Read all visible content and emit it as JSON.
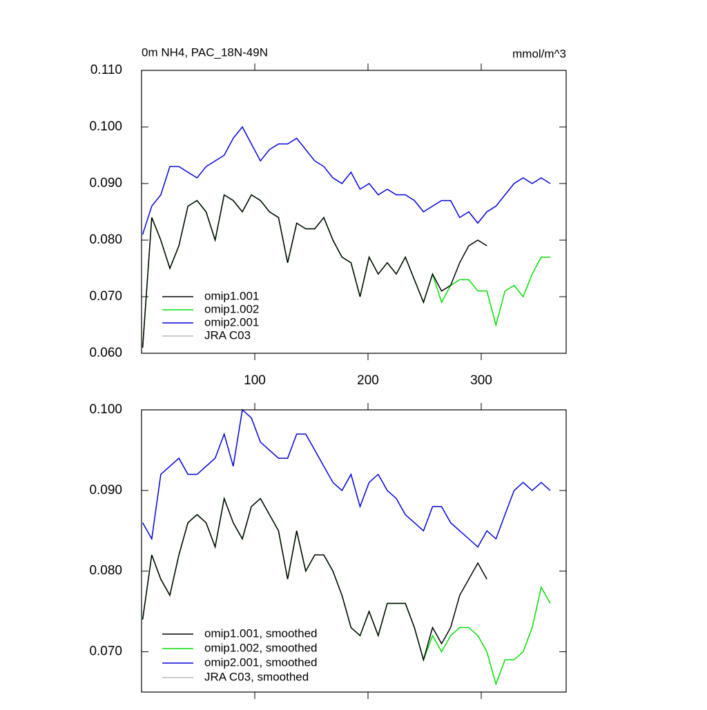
{
  "chart_data": [
    {
      "type": "line",
      "title": "0m NH4, PAC_18N-49N",
      "units": "mmol/m^3",
      "x": [
        1,
        9,
        17,
        25,
        33,
        41,
        49,
        57,
        65,
        73,
        81,
        89,
        97,
        105,
        113,
        121,
        129,
        137,
        145,
        153,
        161,
        169,
        177,
        185,
        193,
        201,
        209,
        217,
        225,
        233,
        241,
        249,
        257,
        265,
        273,
        281,
        289,
        297,
        305,
        313,
        321,
        329,
        337,
        345,
        353,
        361
      ],
      "xlim": [
        0,
        375
      ],
      "xticks": [
        100,
        200,
        300
      ],
      "ylim": [
        0.06,
        0.11
      ],
      "yticks": [
        {
          "value": 0.06,
          "label": "0.060"
        },
        {
          "value": 0.07,
          "label": "0.070"
        },
        {
          "value": 0.08,
          "label": "0.080"
        },
        {
          "value": 0.09,
          "label": "0.090"
        },
        {
          "value": 0.1,
          "label": "0.100"
        },
        {
          "value": 0.11,
          "label": "0.110"
        }
      ],
      "legend": "lower left",
      "series": [
        {
          "name": "omip1.001",
          "color": "#000000",
          "values": [
            0.061,
            0.084,
            0.08,
            0.075,
            0.079,
            0.086,
            0.087,
            0.085,
            0.08,
            0.088,
            0.087,
            0.085,
            0.088,
            0.087,
            0.085,
            0.084,
            0.076,
            0.083,
            0.082,
            0.082,
            0.084,
            0.08,
            0.077,
            0.076,
            0.07,
            0.077,
            0.074,
            0.076,
            0.074,
            0.077,
            0.073,
            0.069,
            0.074,
            0.071,
            0.072,
            0.076,
            0.079,
            0.08,
            0.079,
            null,
            null,
            null,
            null,
            null,
            null,
            null
          ]
        },
        {
          "name": "omip1.002",
          "color": "#00e000",
          "values": [
            0.061,
            0.084,
            0.08,
            0.075,
            0.079,
            0.086,
            0.087,
            0.085,
            0.08,
            0.088,
            0.087,
            0.085,
            0.088,
            0.087,
            0.085,
            0.084,
            0.076,
            0.083,
            0.082,
            0.082,
            0.084,
            0.08,
            0.077,
            0.076,
            0.07,
            0.077,
            0.074,
            0.076,
            0.074,
            0.077,
            0.073,
            0.069,
            0.074,
            0.069,
            0.072,
            0.073,
            0.073,
            0.071,
            0.071,
            0.065,
            0.071,
            0.072,
            0.07,
            0.074,
            0.077,
            0.077
          ]
        },
        {
          "name": "omip2.001",
          "color": "#0000dd",
          "values": [
            0.081,
            0.086,
            0.088,
            0.093,
            0.093,
            0.092,
            0.091,
            0.093,
            0.094,
            0.095,
            0.098,
            0.1,
            0.097,
            0.094,
            0.096,
            0.097,
            0.097,
            0.098,
            0.096,
            0.094,
            0.093,
            0.091,
            0.09,
            0.092,
            0.089,
            0.09,
            0.088,
            0.089,
            0.088,
            0.088,
            0.087,
            0.085,
            0.086,
            0.087,
            0.087,
            0.084,
            0.085,
            0.083,
            0.085,
            0.086,
            0.088,
            0.09,
            0.091,
            0.09,
            0.091,
            0.09
          ]
        },
        {
          "name": "JRA C03",
          "color": "#bbbbbb",
          "values": [
            null,
            null,
            null,
            null,
            null,
            null,
            null,
            null,
            null,
            null,
            null,
            null,
            null,
            null,
            null,
            null,
            null,
            null,
            null,
            null,
            null,
            null,
            null,
            null,
            null,
            null,
            null,
            null,
            null,
            null,
            null,
            null,
            null,
            null,
            null,
            null,
            null,
            null,
            null,
            null,
            null,
            null,
            null,
            null,
            null,
            null
          ]
        }
      ]
    },
    {
      "type": "line",
      "x": [
        1,
        9,
        17,
        25,
        33,
        41,
        49,
        57,
        65,
        73,
        81,
        89,
        97,
        105,
        113,
        121,
        129,
        137,
        145,
        153,
        161,
        169,
        177,
        185,
        193,
        201,
        209,
        217,
        225,
        233,
        241,
        249,
        257,
        265,
        273,
        281,
        289,
        297,
        305,
        313,
        321,
        329,
        337,
        345,
        353,
        361
      ],
      "xlim": [
        0,
        375
      ],
      "xticks": [
        100,
        200,
        300
      ],
      "ylim": [
        0.065,
        0.1
      ],
      "yticks": [
        {
          "value": 0.07,
          "label": "0.070"
        },
        {
          "value": 0.08,
          "label": "0.080"
        },
        {
          "value": 0.09,
          "label": "0.090"
        },
        {
          "value": 0.1,
          "label": "0.100"
        }
      ],
      "legend": "lower left",
      "series": [
        {
          "name": "omip1.001, smoothed",
          "color": "#000000",
          "values": [
            0.074,
            0.082,
            0.079,
            0.077,
            0.082,
            0.086,
            0.087,
            0.086,
            0.083,
            0.089,
            0.086,
            0.084,
            0.088,
            0.089,
            0.087,
            0.085,
            0.079,
            0.085,
            0.08,
            0.082,
            0.082,
            0.08,
            0.077,
            0.073,
            0.072,
            0.075,
            0.072,
            0.076,
            0.076,
            0.076,
            0.073,
            0.069,
            0.073,
            0.071,
            0.073,
            0.077,
            0.079,
            0.081,
            0.079,
            null,
            null,
            null,
            null,
            null,
            null,
            null
          ]
        },
        {
          "name": "omip1.002, smoothed",
          "color": "#00e000",
          "values": [
            0.074,
            0.082,
            0.079,
            0.077,
            0.082,
            0.086,
            0.087,
            0.086,
            0.083,
            0.089,
            0.086,
            0.084,
            0.088,
            0.089,
            0.087,
            0.085,
            0.079,
            0.085,
            0.08,
            0.082,
            0.082,
            0.08,
            0.077,
            0.073,
            0.072,
            0.075,
            0.072,
            0.076,
            0.076,
            0.076,
            0.073,
            0.069,
            0.072,
            0.07,
            0.072,
            0.073,
            0.073,
            0.072,
            0.07,
            0.066,
            0.069,
            0.069,
            0.07,
            0.073,
            0.078,
            0.076
          ]
        },
        {
          "name": "omip2.001, smoothed",
          "color": "#0000dd",
          "values": [
            0.086,
            0.084,
            0.092,
            0.093,
            0.094,
            0.092,
            0.092,
            0.093,
            0.094,
            0.097,
            0.093,
            0.1,
            0.099,
            0.096,
            0.095,
            0.094,
            0.094,
            0.097,
            0.097,
            0.095,
            0.093,
            0.091,
            0.09,
            0.092,
            0.088,
            0.091,
            0.092,
            0.09,
            0.089,
            0.087,
            0.086,
            0.085,
            0.088,
            0.088,
            0.086,
            0.085,
            0.084,
            0.083,
            0.085,
            0.084,
            0.087,
            0.09,
            0.091,
            0.09,
            0.091,
            0.09
          ]
        },
        {
          "name": "JRA C03, smoothed",
          "color": "#bbbbbb",
          "values": [
            null,
            null,
            null,
            null,
            null,
            null,
            null,
            null,
            null,
            null,
            null,
            null,
            null,
            null,
            null,
            null,
            null,
            null,
            null,
            null,
            null,
            null,
            null,
            null,
            null,
            null,
            null,
            null,
            null,
            null,
            null,
            null,
            null,
            null,
            null,
            null,
            null,
            null,
            null,
            null,
            null,
            null,
            null,
            null,
            null,
            null
          ]
        }
      ]
    }
  ]
}
